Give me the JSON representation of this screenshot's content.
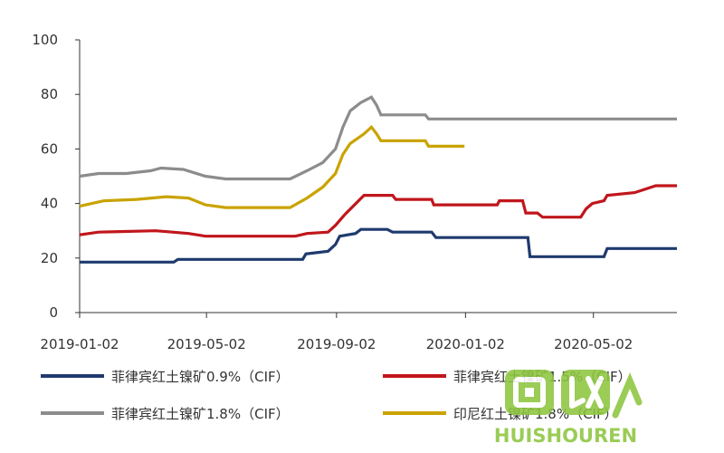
{
  "chart_data": {
    "type": "line",
    "title": "",
    "xlabel": "",
    "ylabel": "",
    "ylim": [
      0,
      100
    ],
    "yticks": [
      0,
      20,
      40,
      60,
      80,
      100
    ],
    "xlim": [
      "2019-01-02",
      "2020-07-20"
    ],
    "xticks": [
      "2019-01-02",
      "2019-05-02",
      "2019-09-02",
      "2020-01-02",
      "2020-05-02"
    ],
    "grid": false,
    "legend_position": "bottom",
    "series": [
      {
        "name": "菲律宾红土镍矿0.9%（CIF）",
        "color": "#1f3a6e",
        "points": [
          [
            "2019-01-02",
            18.5
          ],
          [
            "2019-04-01",
            18.5
          ],
          [
            "2019-04-05",
            19.5
          ],
          [
            "2019-08-01",
            19.5
          ],
          [
            "2019-08-04",
            21.5
          ],
          [
            "2019-08-25",
            22.5
          ],
          [
            "2019-09-01",
            25
          ],
          [
            "2019-09-05",
            28
          ],
          [
            "2019-09-20",
            29
          ],
          [
            "2019-09-25",
            30.5
          ],
          [
            "2019-10-20",
            30.5
          ],
          [
            "2019-10-25",
            29.5
          ],
          [
            "2019-12-01",
            29.5
          ],
          [
            "2019-12-05",
            27.5
          ],
          [
            "2020-03-01",
            27.5
          ],
          [
            "2020-03-03",
            20.5
          ],
          [
            "2020-05-12",
            20.5
          ],
          [
            "2020-05-15",
            23.5
          ],
          [
            "2020-07-20",
            23.5
          ]
        ]
      },
      {
        "name": "菲律宾红土镍矿1.5%（CIF）",
        "color": "#c0161c",
        "points": [
          [
            "2019-01-02",
            28.5
          ],
          [
            "2019-01-20",
            29.5
          ],
          [
            "2019-03-15",
            30
          ],
          [
            "2019-04-15",
            29
          ],
          [
            "2019-05-01",
            28
          ],
          [
            "2019-07-25",
            28
          ],
          [
            "2019-08-05",
            29
          ],
          [
            "2019-08-25",
            29.5
          ],
          [
            "2019-09-01",
            32
          ],
          [
            "2019-09-10",
            36
          ],
          [
            "2019-09-28",
            43
          ],
          [
            "2019-10-25",
            43
          ],
          [
            "2019-10-28",
            41.5
          ],
          [
            "2019-12-01",
            41.5
          ],
          [
            "2019-12-03",
            39.5
          ],
          [
            "2020-02-01",
            39.5
          ],
          [
            "2020-02-03",
            41
          ],
          [
            "2020-02-25",
            41
          ],
          [
            "2020-02-28",
            36.5
          ],
          [
            "2020-03-10",
            36.5
          ],
          [
            "2020-03-15",
            35
          ],
          [
            "2020-04-20",
            35
          ],
          [
            "2020-04-25",
            38
          ],
          [
            "2020-05-01",
            40
          ],
          [
            "2020-05-12",
            41
          ],
          [
            "2020-05-15",
            43
          ],
          [
            "2020-06-10",
            44
          ],
          [
            "2020-06-30",
            46.5
          ],
          [
            "2020-07-20",
            46.5
          ]
        ]
      },
      {
        "name": "菲律宾红土镍矿1.8%（CIF）",
        "color": "#8c8c8c",
        "points": [
          [
            "2019-01-02",
            50
          ],
          [
            "2019-01-20",
            51
          ],
          [
            "2019-02-15",
            51
          ],
          [
            "2019-03-10",
            52
          ],
          [
            "2019-03-20",
            53
          ],
          [
            "2019-04-10",
            52.5
          ],
          [
            "2019-05-01",
            50
          ],
          [
            "2019-05-20",
            49
          ],
          [
            "2019-07-20",
            49
          ],
          [
            "2019-08-05",
            52
          ],
          [
            "2019-08-20",
            55
          ],
          [
            "2019-09-01",
            60
          ],
          [
            "2019-09-08",
            68
          ],
          [
            "2019-09-15",
            74
          ],
          [
            "2019-09-25",
            77
          ],
          [
            "2019-10-05",
            79
          ],
          [
            "2019-10-10",
            76
          ],
          [
            "2019-10-14",
            72.5
          ],
          [
            "2019-11-25",
            72.5
          ],
          [
            "2019-11-28",
            71
          ],
          [
            "2020-07-20",
            71
          ]
        ]
      },
      {
        "name": "印尼红土镍矿1.8%（CIF）",
        "color": "#c9a300",
        "points": [
          [
            "2019-01-02",
            39
          ],
          [
            "2019-01-25",
            41
          ],
          [
            "2019-02-25",
            41.5
          ],
          [
            "2019-03-25",
            42.5
          ],
          [
            "2019-04-15",
            42
          ],
          [
            "2019-05-01",
            39.5
          ],
          [
            "2019-05-20",
            38.5
          ],
          [
            "2019-07-20",
            38.5
          ],
          [
            "2019-08-05",
            42
          ],
          [
            "2019-08-20",
            46
          ],
          [
            "2019-09-01",
            51
          ],
          [
            "2019-09-08",
            58
          ],
          [
            "2019-09-15",
            62
          ],
          [
            "2019-09-28",
            65.5
          ],
          [
            "2019-10-05",
            68
          ],
          [
            "2019-10-10",
            65.5
          ],
          [
            "2019-10-14",
            63
          ],
          [
            "2019-11-25",
            63
          ],
          [
            "2019-11-28",
            61
          ],
          [
            "2020-01-01",
            61
          ]
        ]
      }
    ]
  },
  "watermark": {
    "brand": "HUISHOUREN"
  }
}
